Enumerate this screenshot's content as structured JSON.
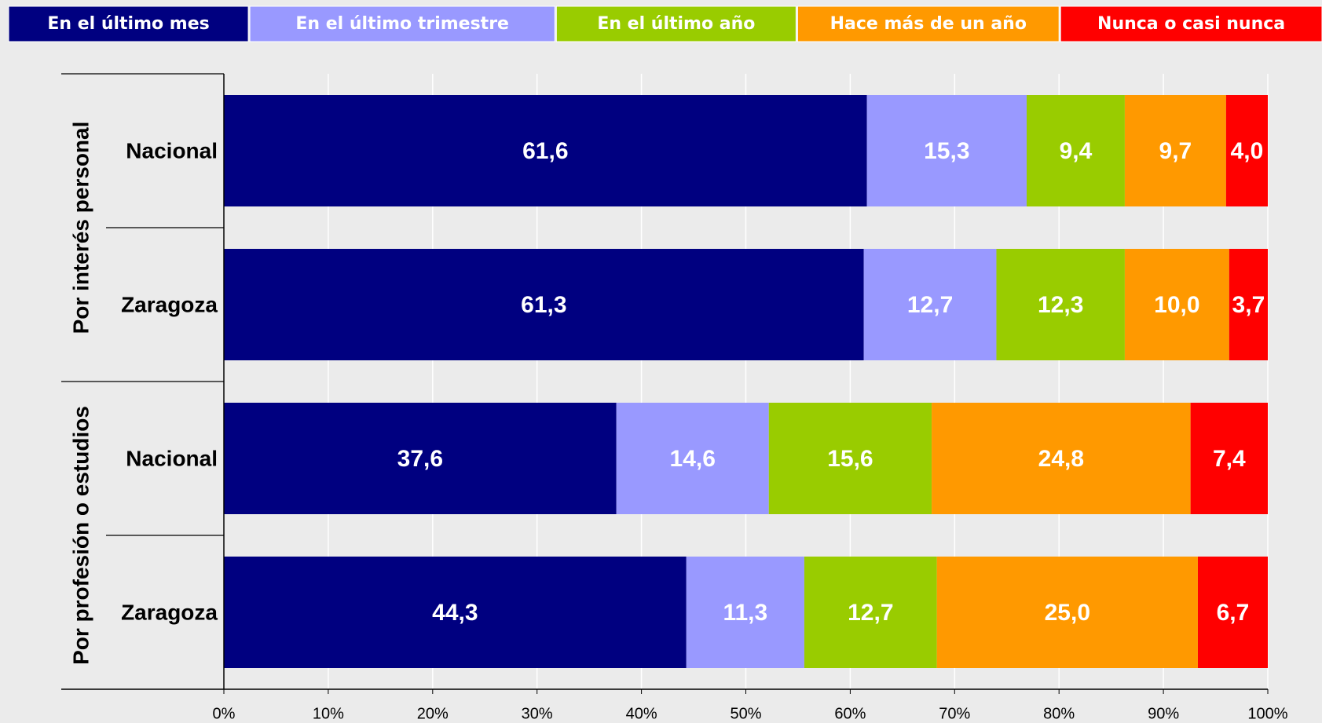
{
  "chart_data": {
    "type": "stacked_bar_horizontal",
    "groups": [
      "Por interés personal",
      "Por profesión o estudios"
    ],
    "categories": [
      "Nacional",
      "Zaragoza",
      "Nacional",
      "Zaragoza"
    ],
    "series": [
      {
        "name": "En el último mes",
        "color": "#000080",
        "values": [
          61.6,
          61.3,
          37.6,
          44.3
        ],
        "value_labels": [
          "61,6",
          "61,3",
          "37,6",
          "44,3"
        ]
      },
      {
        "name": "En el último trimestre",
        "color": "#9999ff",
        "values": [
          15.3,
          12.7,
          14.6,
          11.3
        ],
        "value_labels": [
          "15,3",
          "12,7",
          "14,6",
          "11,3"
        ]
      },
      {
        "name": "En el último año",
        "color": "#99cc00",
        "values": [
          9.4,
          12.3,
          15.6,
          12.7
        ],
        "value_labels": [
          "9,4",
          "12,3",
          "15,6",
          "12,7"
        ]
      },
      {
        "name": "Hace más de un año",
        "color": "#ff9900",
        "values": [
          9.7,
          10.0,
          24.8,
          25.0
        ],
        "value_labels": [
          "9,7",
          "10,0",
          "24,8",
          "25,0"
        ]
      },
      {
        "name": "Nunca o casi nunca",
        "color": "#ff0000",
        "values": [
          4.0,
          3.7,
          7.4,
          6.7
        ],
        "value_labels": [
          "4,0",
          "3,7",
          "7,4",
          "6,7"
        ]
      }
    ],
    "xlim": [
      0,
      100
    ],
    "xticks": [
      {
        "value": 0,
        "label": "0%"
      },
      {
        "value": 10,
        "label": "10%"
      },
      {
        "value": 20,
        "label": "20%"
      },
      {
        "value": 30,
        "label": "30%"
      },
      {
        "value": 40,
        "label": "40%"
      },
      {
        "value": 50,
        "label": "50%"
      },
      {
        "value": 60,
        "label": "60%"
      },
      {
        "value": 70,
        "label": "70%"
      },
      {
        "value": 80,
        "label": "80%"
      },
      {
        "value": 90,
        "label": "90%"
      },
      {
        "value": 100,
        "label": "100%"
      }
    ],
    "grid": true,
    "legend": "top"
  }
}
